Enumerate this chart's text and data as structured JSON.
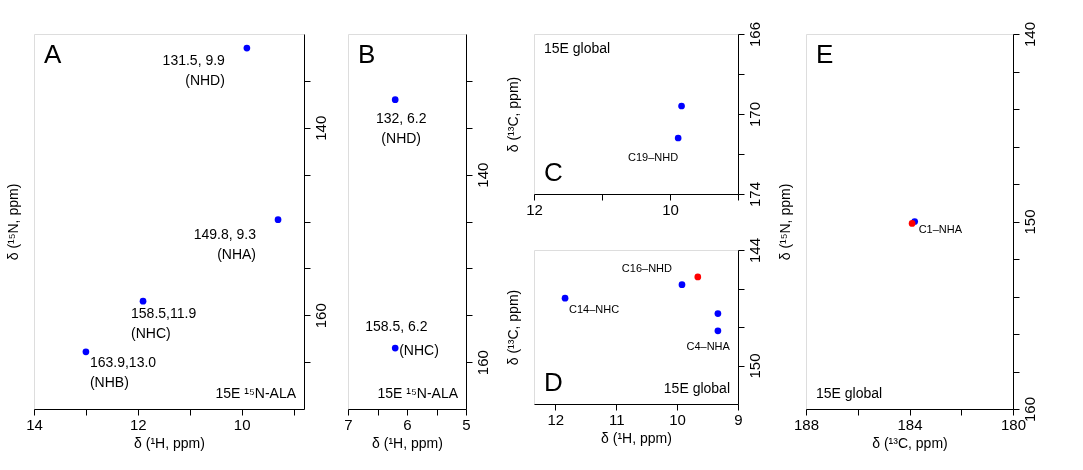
{
  "chart_data": [
    {
      "type": "scatter",
      "xlabel": "δ (¹H, ppm)",
      "ylabel": "δ (¹⁵N, ppm)",
      "xlim": [
        14,
        8.8
      ],
      "ylim": [
        170,
        130
      ],
      "xticks": [
        14,
        {
          "value": 13,
          "label": null
        },
        12,
        {
          "value": 11,
          "label": null
        },
        10,
        {
          "value": 9,
          "label": null
        }
      ],
      "yticks": [
        {
          "value": 135,
          "label": null
        },
        140,
        {
          "value": 145,
          "label": null
        },
        {
          "value": 150,
          "label": null
        },
        {
          "value": 155,
          "label": null
        },
        160,
        {
          "value": 165,
          "label": null
        }
      ],
      "series": [
        {
          "color": "#0000ff",
          "x": [
            9.9,
            9.3,
            11.9,
            13.0
          ],
          "values": [
            131.5,
            149.8,
            158.5,
            163.9
          ]
        }
      ],
      "annotations": [
        "A",
        "15E ¹⁵N-ALA",
        {
          "text": "131.5, 9.9\n(NHD)",
          "x": 9.9,
          "y": 131.5
        },
        {
          "text": "149.8, 9.3\n(NHA)",
          "x": 9.3,
          "y": 149.8
        },
        {
          "text": "158.5,11.9\n(NHC)",
          "x": 11.9,
          "y": 158.5
        },
        {
          "text": "163.9,13.0\n(NHB)",
          "x": 13.0,
          "y": 163.9
        }
      ],
      "grid": false,
      "marker": "circle"
    },
    {
      "type": "scatter",
      "xlabel": "δ (¹H, ppm)",
      "xlim": [
        7,
        5
      ],
      "ylim": [
        165,
        125
      ],
      "xticks": [
        7,
        {
          "value": 6.5,
          "label": null
        },
        6,
        {
          "value": 5.5,
          "label": null
        },
        5
      ],
      "yticks": [
        {
          "value": 130,
          "label": null
        },
        {
          "value": 135,
          "label": null
        },
        140,
        {
          "value": 145,
          "label": null
        },
        {
          "value": 150,
          "label": null
        },
        {
          "value": 155,
          "label": null
        },
        160
      ],
      "series": [
        {
          "color": "#0000ff",
          "x": [
            6.2,
            6.2
          ],
          "values": [
            132,
            158.5
          ]
        }
      ],
      "annotations": [
        "B",
        "15E ¹⁵N-ALA",
        {
          "text": "132, 6.2\n(NHD)",
          "x": 6.2,
          "y": 132
        },
        {
          "text": "158.5, 6.2",
          "x": 6.2,
          "y": 158.5
        },
        {
          "text": "(NHC)",
          "x": 6.2,
          "y": 158.5
        }
      ],
      "grid": false,
      "marker": "circle"
    },
    {
      "type": "scatter",
      "ylabel": "δ (¹³C, ppm)",
      "xlim": [
        12,
        9
      ],
      "ylim": [
        174,
        166
      ],
      "xticks": [
        12,
        {
          "value": 11,
          "label": null
        },
        10,
        {
          "value": 9,
          "label": null
        }
      ],
      "yticks": [
        166,
        {
          "value": 168,
          "label": null
        },
        170,
        {
          "value": 172,
          "label": null
        },
        174
      ],
      "series": [
        {
          "color": "#0000ff",
          "x": [
            9.88,
            9.83
          ],
          "values": [
            171.2,
            169.6
          ]
        }
      ],
      "annotations": [
        "C",
        "15E global",
        {
          "text": "C19–NHD",
          "x": 9.88,
          "y": 171.2
        }
      ],
      "grid": false,
      "marker": "circle"
    },
    {
      "type": "scatter",
      "xlabel": "δ (¹H, ppm)",
      "ylabel": "δ (¹³C, ppm)",
      "xlim": [
        12.35,
        9
      ],
      "ylim": [
        152,
        144
      ],
      "xticks": [
        12,
        11,
        10,
        9
      ],
      "yticks": [
        144,
        {
          "value": 146,
          "label": null
        },
        {
          "value": 148,
          "label": null
        },
        150
      ],
      "series": [
        {
          "color": "#0000ff",
          "x": [
            11.84,
            9.92,
            9.33,
            9.33
          ],
          "values": [
            146.5,
            145.8,
            147.3,
            148.2
          ]
        },
        {
          "color": "#ff0000",
          "x": [
            9.66
          ],
          "values": [
            145.4
          ]
        }
      ],
      "annotations": [
        "D",
        "15E global",
        {
          "text": "C16–NHD",
          "x": 9.92,
          "y": 145.8
        },
        {
          "text": "C14–NHC",
          "x": 11.84,
          "y": 146.5
        },
        {
          "text": "C4–NHA",
          "x": 9.33,
          "y": 148.2
        }
      ],
      "grid": false,
      "marker": "circle"
    },
    {
      "type": "scatter",
      "xlabel": "δ (¹³C, ppm)",
      "ylabel": "δ (¹⁵N, ppm)",
      "xlim": [
        188,
        180
      ],
      "ylim": [
        160,
        140
      ],
      "xticks": [
        188,
        {
          "value": 186,
          "label": null
        },
        184,
        {
          "value": 182,
          "label": null
        },
        180
      ],
      "yticks": [
        140,
        {
          "value": 142,
          "label": null
        },
        {
          "value": 144,
          "label": null
        },
        {
          "value": 146,
          "label": null
        },
        {
          "value": 148,
          "label": null
        },
        150,
        {
          "value": 152,
          "label": null
        },
        {
          "value": 154,
          "label": null
        },
        {
          "value": 156,
          "label": null
        },
        {
          "value": 158,
          "label": null
        },
        160
      ],
      "series": [
        {
          "color": "#0000ff",
          "x": [
            183.8
          ],
          "values": [
            150.0
          ]
        },
        {
          "color": "#ff0000",
          "x": [
            183.9
          ],
          "values": [
            150.1
          ]
        }
      ],
      "annotations": [
        "E",
        "15E global",
        {
          "text": "C1–NHA",
          "x": 183.8,
          "y": 150.0
        }
      ],
      "grid": false,
      "marker": "circle"
    }
  ]
}
